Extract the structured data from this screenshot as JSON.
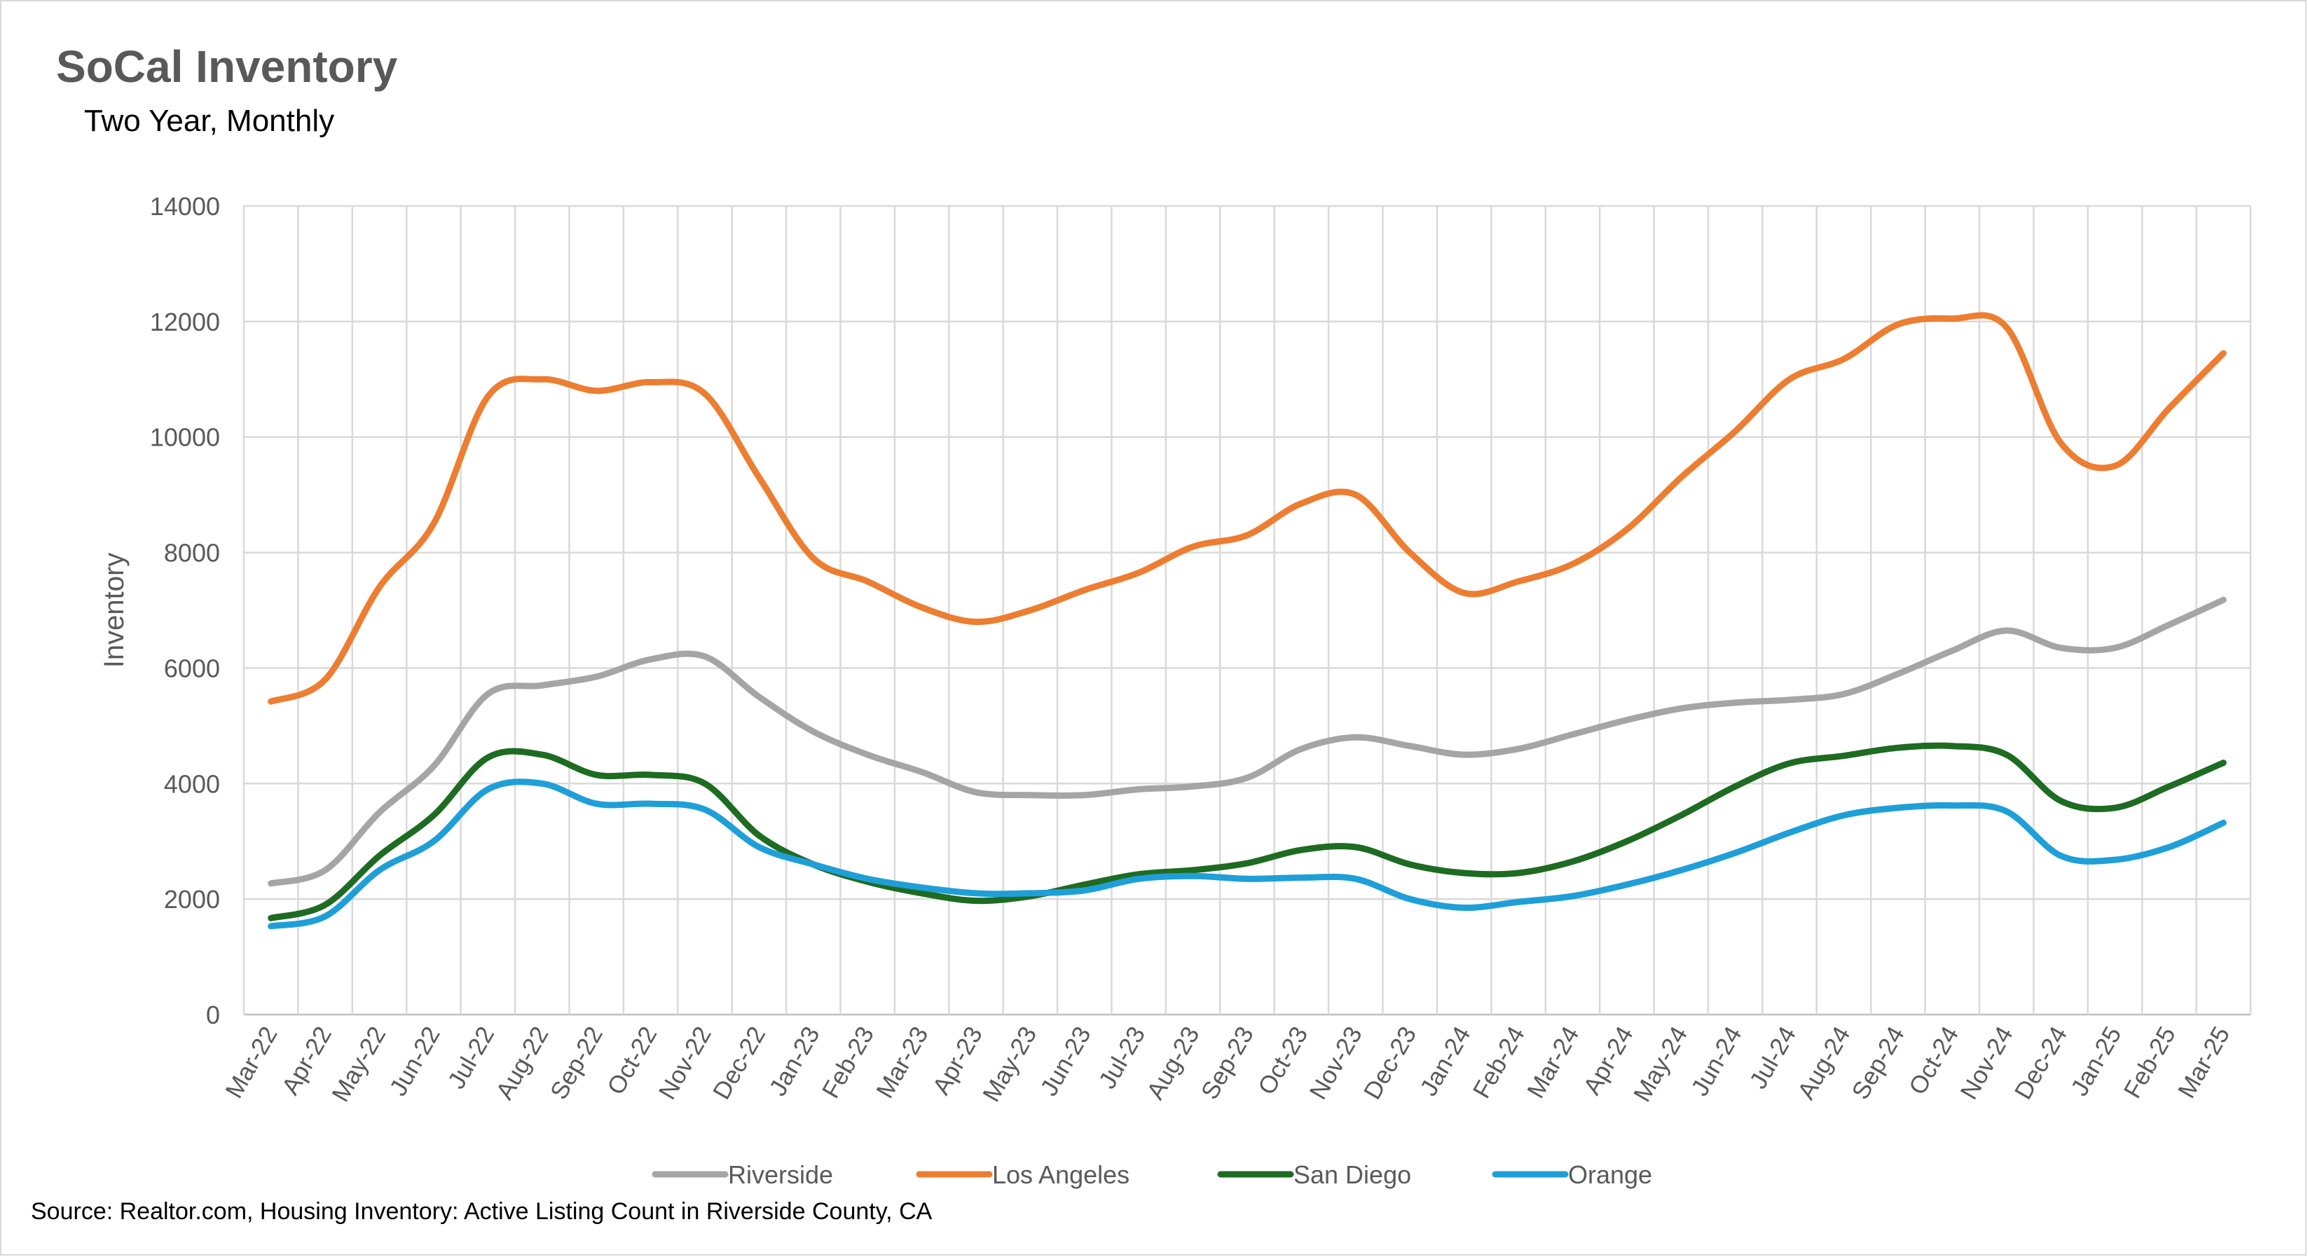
{
  "title": "SoCal Inventory",
  "subtitle": "Two Year, Monthly",
  "source": "Source: Realtor.com, Housing Inventory: Active Listing Count in Riverside County, CA",
  "chart_data": {
    "type": "line",
    "title": "SoCal Inventory",
    "subtitle": "Two Year, Monthly",
    "xlabel": "",
    "ylabel": "Inventory",
    "ylim": [
      0,
      14000
    ],
    "yticks": [
      0,
      2000,
      4000,
      6000,
      8000,
      10000,
      12000,
      14000
    ],
    "grid": true,
    "legend_position": "bottom",
    "categories": [
      "Mar-22",
      "Apr-22",
      "May-22",
      "Jun-22",
      "Jul-22",
      "Aug-22",
      "Sep-22",
      "Oct-22",
      "Nov-22",
      "Dec-22",
      "Jan-23",
      "Feb-23",
      "Mar-23",
      "Apr-23",
      "May-23",
      "Jun-23",
      "Jul-23",
      "Aug-23",
      "Sep-23",
      "Oct-23",
      "Nov-23",
      "Dec-23",
      "Jan-24",
      "Feb-24",
      "Mar-24",
      "Apr-24",
      "May-24",
      "Jun-24",
      "Jul-24",
      "Aug-24",
      "Sep-24",
      "Oct-24",
      "Nov-24",
      "Dec-24",
      "Jan-25",
      "Feb-25",
      "Mar-25"
    ],
    "series": [
      {
        "name": "Riverside",
        "color": "#a5a5a5",
        "values": [
          2270,
          2500,
          3500,
          4300,
          5550,
          5700,
          5850,
          6150,
          6200,
          5500,
          4900,
          4500,
          4200,
          3850,
          3800,
          3800,
          3900,
          3950,
          4100,
          4600,
          4800,
          4650,
          4500,
          4600,
          4850,
          5100,
          5300,
          5400,
          5450,
          5550,
          5900,
          6300,
          6650,
          6350,
          6350,
          6750,
          7180
        ]
      },
      {
        "name": "Los Angeles",
        "color": "#ed7d31",
        "values": [
          5420,
          5800,
          7400,
          8500,
          10700,
          11000,
          10800,
          10950,
          10750,
          9300,
          7900,
          7500,
          7050,
          6800,
          7000,
          7350,
          7650,
          8100,
          8300,
          8850,
          9000,
          8000,
          7300,
          7500,
          7800,
          8400,
          9300,
          10100,
          11000,
          11350,
          11950,
          12050,
          11900,
          9900,
          9500,
          10500,
          11450
        ]
      },
      {
        "name": "San Diego",
        "color": "#1e6b22",
        "values": [
          1670,
          1900,
          2750,
          3450,
          4450,
          4500,
          4150,
          4150,
          4000,
          3100,
          2600,
          2300,
          2100,
          1970,
          2050,
          2250,
          2430,
          2500,
          2620,
          2850,
          2900,
          2600,
          2450,
          2450,
          2650,
          3000,
          3450,
          3950,
          4350,
          4480,
          4620,
          4650,
          4500,
          3700,
          3580,
          3950,
          4360
        ]
      },
      {
        "name": "Orange",
        "color": "#1f9fd8",
        "values": [
          1530,
          1700,
          2500,
          3000,
          3900,
          4000,
          3650,
          3650,
          3550,
          2900,
          2600,
          2350,
          2200,
          2100,
          2100,
          2150,
          2350,
          2400,
          2350,
          2370,
          2350,
          2000,
          1850,
          1950,
          2050,
          2250,
          2500,
          2800,
          3150,
          3450,
          3580,
          3620,
          3520,
          2750,
          2680,
          2900,
          3320
        ]
      }
    ]
  }
}
